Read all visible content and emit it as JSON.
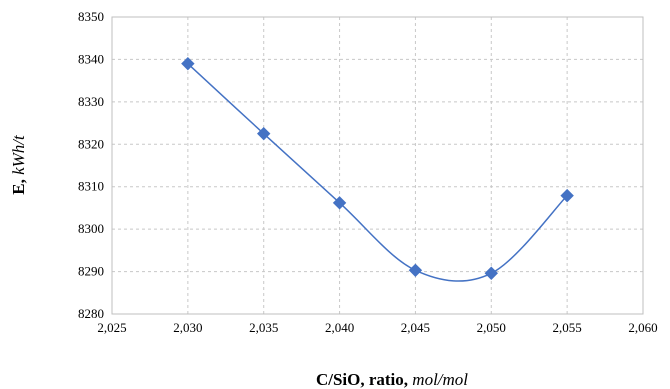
{
  "chart_data": {
    "type": "scatter",
    "title": "",
    "xlabel": {
      "main": "C/SiO, ratio, ",
      "unit": "mol/mol"
    },
    "ylabel": {
      "main": "E, ",
      "unit": "kWh/t"
    },
    "xlim": [
      2.025,
      2.06
    ],
    "ylim": [
      8280,
      8350
    ],
    "x_ticks": [
      "2,025",
      "2,030",
      "2,035",
      "2,040",
      "2,045",
      "2,050",
      "2,055",
      "2,060"
    ],
    "y_ticks": [
      "8280",
      "8290",
      "8300",
      "8310",
      "8320",
      "8330",
      "8340",
      "8350"
    ],
    "grid": true,
    "smooth": true,
    "legend": "none",
    "series": [
      {
        "x": [
          2.03,
          2.035,
          2.04,
          2.045,
          2.05,
          2.055
        ],
        "y": [
          8339,
          8322.5,
          8306.2,
          8290.3,
          8289.6,
          8307.9
        ],
        "color": "#4472C4",
        "marker": "diamond"
      }
    ]
  }
}
